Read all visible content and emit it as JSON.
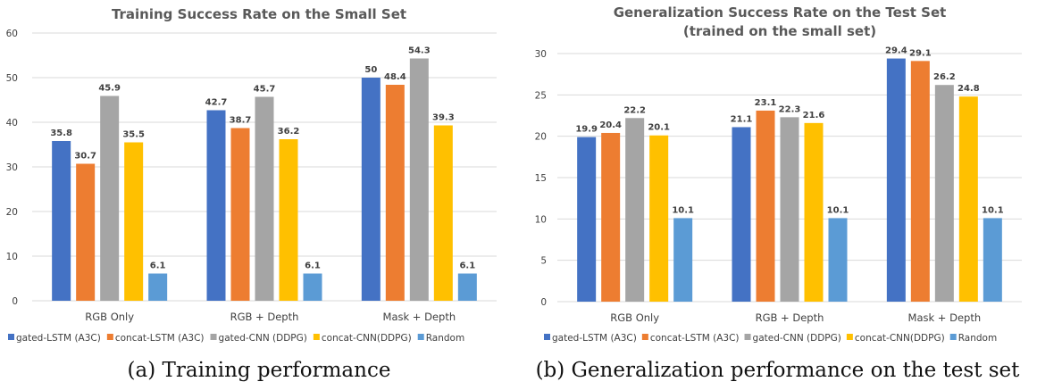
{
  "colors": {
    "gated_lstm": "#4472C4",
    "concat_lstm": "#ED7D31",
    "gated_cnn": "#A5A5A5",
    "concat_cnn": "#FFC000",
    "random": "#5B9BD5",
    "gridline": "#d9d9d9",
    "title_text": "#595959",
    "axis_text": "#404040"
  },
  "chart_data": [
    {
      "type": "bar",
      "title": "Training Success Rate on the Small Set",
      "caption": "(a) Training performance",
      "categories": [
        "RGB Only",
        "RGB + Depth",
        "Mask + Depth"
      ],
      "ylim": [
        0,
        60
      ],
      "yticks": [
        0,
        10,
        20,
        30,
        40,
        50,
        60
      ],
      "grid": true,
      "legend_position": "bottom",
      "series": [
        {
          "name": "gated-LSTM (A3C)",
          "values": [
            35.8,
            42.7,
            50
          ],
          "labels": [
            "35.8",
            "42.7",
            "50"
          ]
        },
        {
          "name": "concat-LSTM (A3C)",
          "values": [
            30.7,
            38.7,
            48.4
          ],
          "labels": [
            "30.7",
            "38.7",
            "48.4"
          ]
        },
        {
          "name": "gated-CNN (DDPG)",
          "values": [
            45.9,
            45.7,
            54.3
          ],
          "labels": [
            "45.9",
            "45.7",
            "54.3"
          ]
        },
        {
          "name": "concat-CNN(DDPG)",
          "values": [
            35.5,
            36.2,
            39.3
          ],
          "labels": [
            "35.5",
            "36.2",
            "39.3"
          ]
        },
        {
          "name": "Random",
          "values": [
            6.1,
            6.1,
            6.1
          ],
          "labels": [
            "6.1",
            "6.1",
            "6.1"
          ]
        }
      ]
    },
    {
      "type": "bar",
      "title": "Generalization Success Rate on the Test Set",
      "title_line2": "(trained on the small set)",
      "caption": "(b) Generalization performance on the test set",
      "categories": [
        "RGB Only",
        "RGB + Depth",
        "Mask + Depth"
      ],
      "ylim": [
        0,
        30
      ],
      "yticks": [
        0,
        5,
        10,
        15,
        20,
        25,
        30
      ],
      "grid": true,
      "legend_position": "bottom",
      "series": [
        {
          "name": "gated-LSTM (A3C)",
          "values": [
            19.9,
            21.1,
            29.4
          ],
          "labels": [
            "19.9",
            "21.1",
            "29.4"
          ]
        },
        {
          "name": "concat-LSTM (A3C)",
          "values": [
            20.4,
            23.1,
            29.1
          ],
          "labels": [
            "20.4",
            "23.1",
            "29.1"
          ]
        },
        {
          "name": "gated-CNN (DDPG)",
          "values": [
            22.2,
            22.3,
            26.2
          ],
          "labels": [
            "22.2",
            "22.3",
            "26.2"
          ]
        },
        {
          "name": "concat-CNN(DDPG)",
          "values": [
            20.1,
            21.6,
            24.8
          ],
          "labels": [
            "20.1",
            "21.6",
            "24.8"
          ]
        },
        {
          "name": "Random",
          "values": [
            10.1,
            10.1,
            10.1
          ],
          "labels": [
            "10.1",
            "10.1",
            "10.1"
          ]
        }
      ]
    }
  ]
}
